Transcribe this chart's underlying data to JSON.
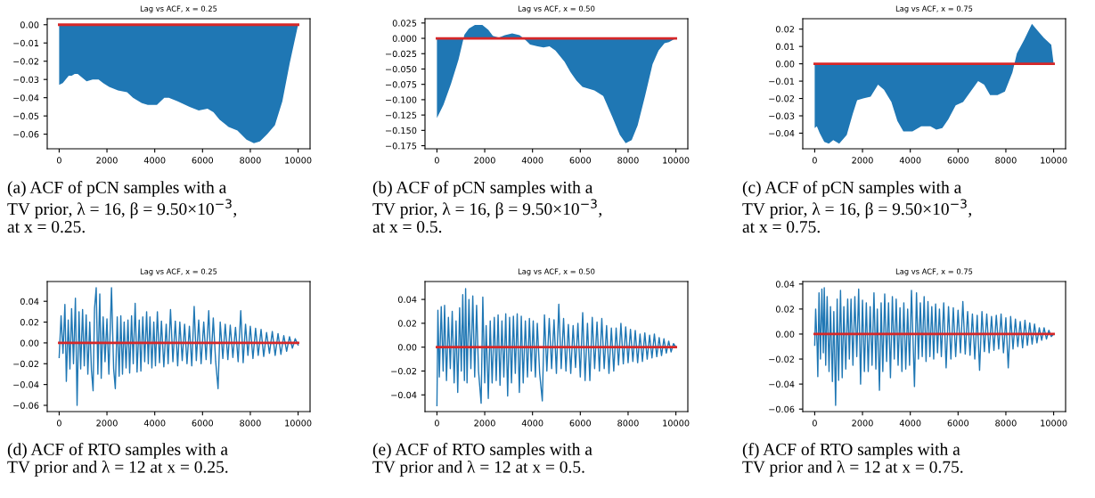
{
  "chart_data": [
    {
      "type": "area",
      "title": "Lag vs ACF, x = 0.25",
      "annotations": [
        "(a) ACF of pCN samples with a\nTV prior, λ = 16, β = 9.50×10$^{−3}$,\nat x = 0.25."
      ],
      "xlim": [
        -500,
        10500
      ],
      "xticks": [
        0,
        2000,
        4000,
        6000,
        8000,
        10000
      ],
      "ylim": [
        -0.068,
        0.0033
      ],
      "yticks": [
        {
          "value": 0,
          "label": "0.00"
        },
        {
          "value": -0.01,
          "label": "−0.01"
        },
        {
          "value": -0.02,
          "label": "−0.02"
        },
        {
          "value": -0.03,
          "label": "−0.03"
        },
        {
          "value": -0.04,
          "label": "−0.04"
        },
        {
          "value": -0.05,
          "label": "−0.05"
        },
        {
          "value": -0.06,
          "label": "−0.06"
        }
      ],
      "grid": false,
      "series": [
        {
          "color": "#1f77b4",
          "x": [
            0,
            150,
            400,
            525,
            650,
            775,
            1150,
            1400,
            1650,
            1840,
            2090,
            2460,
            2840,
            3090,
            3460,
            3710,
            4090,
            4400,
            4590,
            4960,
            5460,
            5840,
            6210,
            6460,
            6710,
            7090,
            7460,
            7840,
            8150,
            8400,
            8710,
            9030,
            9340,
            9650,
            10000
          ],
          "values": [
            -0.033,
            -0.032,
            -0.028,
            -0.028,
            -0.027,
            -0.027,
            -0.031,
            -0.03,
            -0.03,
            -0.032,
            -0.034,
            -0.036,
            -0.037,
            -0.04,
            -0.043,
            -0.044,
            -0.044,
            -0.04,
            -0.04,
            -0.042,
            -0.045,
            -0.047,
            -0.046,
            -0.048,
            -0.052,
            -0.056,
            -0.058,
            -0.063,
            -0.065,
            -0.064,
            -0.06,
            -0.055,
            -0.042,
            -0.021,
            0.0
          ]
        },
        {
          "type": "line",
          "color": "#d62728",
          "x": [
            0,
            10000
          ],
          "values": [
            0,
            0
          ]
        }
      ]
    },
    {
      "type": "area",
      "title": "Lag vs ACF, x = 0.50",
      "annotations": [
        "(b) ACF of pCN samples with a\nTV prior, λ = 16, β = 9.50×10$^{−3}$,\nat x = 0.5."
      ],
      "xlim": [
        -500,
        10500
      ],
      "xticks": [
        0,
        2000,
        4000,
        6000,
        8000,
        10000
      ],
      "ylim": [
        -0.18,
        0.032
      ],
      "yticks": [
        {
          "value": 0.025,
          "label": "0.025"
        },
        {
          "value": 0,
          "label": "0.000"
        },
        {
          "value": -0.025,
          "label": "−0.025"
        },
        {
          "value": -0.05,
          "label": "−0.050"
        },
        {
          "value": -0.075,
          "label": "−0.075"
        },
        {
          "value": -0.1,
          "label": "−0.100"
        },
        {
          "value": -0.125,
          "label": "−0.125"
        },
        {
          "value": -0.15,
          "label": "−0.150"
        },
        {
          "value": -0.175,
          "label": "−0.175"
        }
      ],
      "grid": false,
      "series": [
        {
          "color": "#1f77b4",
          "x": [
            0,
            275,
            590,
            900,
            1150,
            1340,
            1590,
            1900,
            2150,
            2340,
            2590,
            2840,
            3150,
            3460,
            3710,
            3900,
            4210,
            4460,
            4710,
            4960,
            5340,
            5590,
            5840,
            6090,
            6590,
            6960,
            7340,
            7650,
            7900,
            8150,
            8400,
            8710,
            9025,
            9275,
            9525,
            9710,
            10000
          ],
          "values": [
            -0.13,
            -0.108,
            -0.074,
            -0.035,
            0.006,
            0.016,
            0.022,
            0.022,
            0.014,
            0.004,
            0.001,
            0.005,
            0.008,
            0.005,
            -0.003,
            -0.01,
            -0.013,
            -0.015,
            -0.013,
            -0.02,
            -0.038,
            -0.055,
            -0.069,
            -0.079,
            -0.085,
            -0.094,
            -0.128,
            -0.157,
            -0.171,
            -0.166,
            -0.142,
            -0.094,
            -0.042,
            -0.02,
            -0.008,
            -0.006,
            0.0
          ]
        },
        {
          "type": "line",
          "color": "#d62728",
          "x": [
            0,
            10000
          ],
          "values": [
            0,
            0
          ]
        }
      ]
    },
    {
      "type": "area",
      "title": "Lag vs ACF, x = 0.75",
      "annotations": [
        "(c) ACF of pCN samples with a\nTV prior, λ = 16, β = 9.50×10$^{−3}$,\nat x = 0.75."
      ],
      "xlim": [
        -500,
        10500
      ],
      "xticks": [
        0,
        2000,
        4000,
        6000,
        8000,
        10000
      ],
      "ylim": [
        -0.049,
        0.026
      ],
      "yticks": [
        {
          "value": 0.02,
          "label": "0.02"
        },
        {
          "value": 0.01,
          "label": "0.01"
        },
        {
          "value": 0,
          "label": "0.00"
        },
        {
          "value": -0.01,
          "label": "−0.01"
        },
        {
          "value": -0.02,
          "label": "−0.02"
        },
        {
          "value": -0.03,
          "label": "−0.03"
        },
        {
          "value": -0.04,
          "label": "−0.04"
        }
      ],
      "grid": false,
      "series": [
        {
          "color": "#1f77b4",
          "x": [
            0,
            90,
            210,
            400,
            590,
            775,
            1025,
            1340,
            1590,
            1775,
            2025,
            2340,
            2650,
            2900,
            3210,
            3460,
            3710,
            4090,
            4460,
            4840,
            5090,
            5340,
            5590,
            5900,
            6210,
            6525,
            6840,
            7090,
            7340,
            7650,
            7960,
            8275,
            8460,
            8775,
            9090,
            9340,
            9590,
            9900,
            10000
          ],
          "values": [
            -0.037,
            -0.036,
            -0.04,
            -0.045,
            -0.046,
            -0.044,
            -0.046,
            -0.041,
            -0.029,
            -0.021,
            -0.02,
            -0.019,
            -0.012,
            -0.015,
            -0.022,
            -0.033,
            -0.039,
            -0.039,
            -0.036,
            -0.036,
            -0.038,
            -0.037,
            -0.032,
            -0.024,
            -0.022,
            -0.016,
            -0.01,
            -0.012,
            -0.018,
            -0.018,
            -0.016,
            -0.005,
            0.006,
            0.014,
            0.023,
            0.019,
            0.015,
            0.011,
            0.0
          ]
        },
        {
          "type": "line",
          "color": "#d62728",
          "x": [
            0,
            10000
          ],
          "values": [
            0,
            0
          ]
        }
      ]
    },
    {
      "type": "line",
      "title": "Lag vs ACF, x = 0.25",
      "annotations": [
        "(d) ACF of RTO samples with a\nTV prior and λ = 12 at x = 0.25."
      ],
      "xlim": [
        -500,
        10500
      ],
      "xticks": [
        0,
        2000,
        4000,
        6000,
        8000,
        10000
      ],
      "ylim": [
        -0.066,
        0.059
      ],
      "yticks": [
        {
          "value": 0.04,
          "label": "0.04"
        },
        {
          "value": 0.02,
          "label": "0.02"
        },
        {
          "value": 0,
          "label": "0.00"
        },
        {
          "value": -0.02,
          "label": "−0.02"
        },
        {
          "value": -0.04,
          "label": "−0.04"
        },
        {
          "value": -0.06,
          "label": "−0.06"
        }
      ],
      "grid": false,
      "series": [
        {
          "color": "#1f77b4",
          "x": [
            0,
            80,
            160,
            240,
            300,
            380,
            450,
            520,
            600,
            680,
            750,
            830,
            900,
            980,
            1050,
            1130,
            1200,
            1280,
            1350,
            1420,
            1480,
            1550,
            1620,
            1700,
            1760,
            1840,
            1920,
            2000,
            2080,
            2190,
            2280,
            2350,
            2430,
            2510,
            2580,
            2650,
            2720,
            2800,
            2880,
            2950,
            3030,
            3100,
            3180,
            3260,
            3350,
            3420,
            3500,
            3580,
            3660,
            3730,
            3800,
            3880,
            3960,
            4030,
            4110,
            4200,
            4280,
            4380,
            4480,
            4560,
            4660,
            4760,
            4860,
            4960,
            5050,
            5150,
            5250,
            5350,
            5450,
            5550,
            5650,
            5740,
            5840,
            5940,
            6050,
            6150,
            6260,
            6350,
            6450,
            6550,
            6650,
            6740,
            6850,
            6950,
            7060,
            7160,
            7270,
            7380,
            7490,
            7600,
            7700,
            7800,
            7900,
            8000,
            8110,
            8220,
            8330,
            8450,
            8560,
            8680,
            8800,
            8920,
            9040,
            9160,
            9280,
            9400,
            9520,
            9640,
            9760,
            9880,
            10000
          ],
          "values": [
            -0.014,
            0.026,
            -0.01,
            0.037,
            -0.037,
            0.022,
            -0.025,
            0.033,
            -0.02,
            0.043,
            -0.06,
            0.03,
            -0.025,
            0.032,
            -0.022,
            0.027,
            -0.03,
            0.02,
            -0.026,
            -0.046,
            0.033,
            0.053,
            -0.03,
            0.047,
            -0.034,
            0.025,
            -0.018,
            0.023,
            -0.03,
            0.053,
            -0.025,
            -0.044,
            0.025,
            -0.032,
            0.026,
            -0.03,
            0.02,
            -0.024,
            0.022,
            -0.029,
            0.026,
            -0.02,
            0.038,
            -0.028,
            0.022,
            -0.027,
            0.025,
            -0.018,
            0.03,
            -0.02,
            0.025,
            -0.024,
            0.02,
            -0.022,
            0.03,
            -0.019,
            0.021,
            -0.023,
            0.018,
            -0.02,
            0.032,
            -0.018,
            0.021,
            -0.022,
            0.02,
            -0.017,
            0.018,
            -0.02,
            0.016,
            -0.022,
            0.035,
            -0.017,
            0.022,
            -0.02,
            0.02,
            -0.016,
            0.031,
            -0.02,
            0.024,
            -0.018,
            -0.044,
            0.02,
            -0.015,
            0.018,
            -0.016,
            0.017,
            -0.014,
            0.015,
            -0.018,
            0.031,
            -0.019,
            0.018,
            -0.012,
            0.016,
            -0.015,
            0.014,
            -0.012,
            0.013,
            -0.013,
            0.01,
            -0.01,
            0.011,
            -0.012,
            0.009,
            -0.011,
            0.007,
            -0.008,
            0.006,
            -0.005,
            0.004,
            -0.002
          ]
        },
        {
          "type": "line",
          "color": "#d62728",
          "x": [
            0,
            10000
          ],
          "values": [
            0,
            0
          ]
        }
      ]
    },
    {
      "type": "line",
      "title": "Lag vs ACF, x = 0.50",
      "annotations": [
        "(e) ACF of RTO samples with a\nTV prior and λ = 12 at x = 0.5."
      ],
      "xlim": [
        -500,
        10500
      ],
      "xticks": [
        0,
        2000,
        4000,
        6000,
        8000,
        10000
      ],
      "ylim": [
        -0.054,
        0.055
      ],
      "yticks": [
        {
          "value": 0.04,
          "label": "0.04"
        },
        {
          "value": 0.02,
          "label": "0.02"
        },
        {
          "value": 0,
          "label": "0.00"
        },
        {
          "value": -0.02,
          "label": "−0.02"
        },
        {
          "value": -0.04,
          "label": "−0.04"
        }
      ],
      "grid": false,
      "series": [
        {
          "color": "#1f77b4",
          "x": [
            0,
            40,
            100,
            180,
            260,
            320,
            400,
            480,
            560,
            640,
            720,
            800,
            870,
            950,
            1020,
            1080,
            1150,
            1200,
            1260,
            1340,
            1420,
            1500,
            1580,
            1660,
            1740,
            1850,
            1920,
            2000,
            2060,
            2150,
            2230,
            2310,
            2400,
            2480,
            2560,
            2640,
            2720,
            2800,
            2880,
            2960,
            3040,
            3120,
            3200,
            3280,
            3360,
            3450,
            3530,
            3610,
            3700,
            3790,
            3870,
            3950,
            4030,
            4120,
            4200,
            4300,
            4410,
            4500,
            4600,
            4700,
            4800,
            4900,
            5000,
            5100,
            5200,
            5300,
            5400,
            5500,
            5600,
            5700,
            5800,
            5900,
            6000,
            6100,
            6200,
            6300,
            6400,
            6500,
            6600,
            6700,
            6800,
            6900,
            7000,
            7100,
            7200,
            7300,
            7400,
            7500,
            7600,
            7700,
            7800,
            7900,
            8000,
            8100,
            8200,
            8300,
            8400,
            8500,
            8600,
            8700,
            8800,
            8900,
            9000,
            9100,
            9200,
            9300,
            9400,
            9500,
            9600,
            9700,
            9800,
            9900,
            10000
          ],
          "values": [
            -0.049,
            0.031,
            -0.025,
            0.034,
            -0.02,
            0.035,
            -0.028,
            0.025,
            -0.018,
            0.03,
            -0.03,
            0.022,
            -0.038,
            0.033,
            -0.02,
            0.044,
            -0.028,
            0.049,
            -0.03,
            0.04,
            -0.018,
            0.043,
            -0.025,
            0.035,
            -0.02,
            -0.047,
            0.042,
            -0.03,
            0.018,
            -0.043,
            0.022,
            -0.03,
            0.025,
            -0.028,
            0.027,
            -0.032,
            0.022,
            -0.025,
            0.028,
            -0.041,
            0.025,
            -0.03,
            0.026,
            -0.022,
            0.028,
            -0.038,
            0.026,
            -0.03,
            0.022,
            -0.025,
            0.024,
            -0.02,
            0.022,
            -0.025,
            0.02,
            -0.022,
            -0.045,
            0.027,
            -0.02,
            0.024,
            -0.018,
            0.023,
            -0.022,
            0.036,
            -0.018,
            0.024,
            -0.02,
            0.019,
            -0.022,
            0.018,
            -0.017,
            0.02,
            -0.025,
            0.029,
            -0.028,
            0.02,
            -0.028,
            0.025,
            -0.018,
            0.021,
            -0.02,
            0.024,
            -0.018,
            0.018,
            -0.022,
            0.016,
            -0.02,
            0.016,
            -0.015,
            0.02,
            -0.014,
            0.017,
            -0.013,
            0.015,
            -0.012,
            0.014,
            -0.013,
            0.011,
            -0.012,
            0.012,
            -0.01,
            0.01,
            -0.009,
            0.011,
            -0.008,
            0.008,
            -0.007,
            0.007,
            -0.005,
            0.005,
            -0.004,
            0.003,
            0.0
          ]
        },
        {
          "type": "line",
          "color": "#d62728",
          "x": [
            0,
            10000
          ],
          "values": [
            0,
            0
          ]
        }
      ]
    },
    {
      "type": "line",
      "title": "Lag vs ACF, x = 0.75",
      "annotations": [
        "(f) ACF of RTO samples with a\nTV prior and λ = 12 at x = 0.75."
      ],
      "xlim": [
        -500,
        10500
      ],
      "xticks": [
        0,
        2000,
        4000,
        6000,
        8000,
        10000
      ],
      "ylim": [
        -0.062,
        0.042
      ],
      "yticks": [
        {
          "value": 0.04,
          "label": "0.04"
        },
        {
          "value": 0.02,
          "label": "0.02"
        },
        {
          "value": 0,
          "label": "0.00"
        },
        {
          "value": -0.02,
          "label": "−0.02"
        },
        {
          "value": -0.04,
          "label": "−0.04"
        },
        {
          "value": -0.06,
          "label": "−0.06"
        }
      ],
      "grid": false,
      "series": [
        {
          "color": "#1f77b4",
          "x": [
            0,
            40,
            100,
            130,
            180,
            240,
            300,
            360,
            400,
            460,
            520,
            600,
            660,
            740,
            800,
            875,
            940,
            1000,
            1080,
            1150,
            1220,
            1300,
            1380,
            1450,
            1520,
            1600,
            1680,
            1760,
            1840,
            1920,
            2000,
            2080,
            2160,
            2240,
            2320,
            2400,
            2480,
            2560,
            2620,
            2710,
            2780,
            2850,
            2930,
            3010,
            3090,
            3170,
            3250,
            3330,
            3410,
            3490,
            3570,
            3650,
            3730,
            3810,
            3890,
            3970,
            4050,
            4175,
            4260,
            4340,
            4420,
            4500,
            4580,
            4660,
            4740,
            4820,
            4900,
            4980,
            5060,
            5140,
            5220,
            5300,
            5400,
            5500,
            5600,
            5700,
            5800,
            5900,
            6000,
            6100,
            6200,
            6300,
            6400,
            6500,
            6600,
            6700,
            6800,
            6900,
            7000,
            7100,
            7200,
            7300,
            7400,
            7500,
            7600,
            7700,
            7800,
            7900,
            8000,
            8100,
            8200,
            8300,
            8400,
            8500,
            8600,
            8700,
            8800,
            8900,
            9000,
            9100,
            9200,
            9300,
            9400,
            9500,
            9600,
            9700,
            9800,
            9900,
            10000
          ],
          "values": [
            -0.009,
            0.02,
            -0.009,
            -0.034,
            0.033,
            -0.02,
            0.036,
            -0.015,
            0.037,
            -0.025,
            0.03,
            -0.03,
            0.022,
            -0.038,
            0.018,
            -0.057,
            0.028,
            -0.037,
            0.035,
            -0.035,
            0.022,
            -0.028,
            0.028,
            -0.02,
            0.028,
            -0.025,
            0.03,
            -0.018,
            0.036,
            -0.04,
            0.027,
            -0.03,
            0.025,
            -0.03,
            0.022,
            -0.025,
            0.033,
            -0.028,
            0.02,
            -0.045,
            0.025,
            -0.03,
            0.032,
            -0.022,
            0.025,
            -0.035,
            0.03,
            -0.02,
            0.028,
            -0.025,
            0.021,
            -0.03,
            0.025,
            -0.028,
            0.02,
            -0.025,
            0.035,
            -0.042,
            0.033,
            -0.02,
            0.025,
            -0.018,
            0.03,
            -0.022,
            0.026,
            -0.018,
            0.022,
            -0.02,
            0.024,
            -0.015,
            0.02,
            -0.018,
            0.025,
            -0.027,
            0.022,
            -0.02,
            0.021,
            -0.018,
            0.019,
            -0.015,
            0.026,
            -0.016,
            0.018,
            -0.017,
            0.016,
            -0.02,
            0.015,
            -0.029,
            0.018,
            -0.014,
            0.016,
            -0.015,
            0.014,
            -0.013,
            0.015,
            -0.012,
            0.016,
            -0.015,
            0.013,
            -0.027,
            0.014,
            -0.012,
            0.012,
            -0.01,
            0.01,
            -0.011,
            0.011,
            -0.009,
            0.009,
            -0.008,
            0.008,
            -0.007,
            0.005,
            -0.005,
            0.005,
            -0.004,
            0.003,
            -0.002,
            0.0
          ]
        },
        {
          "type": "line",
          "color": "#d62728",
          "x": [
            0,
            10000
          ],
          "values": [
            0,
            0
          ]
        }
      ]
    }
  ]
}
